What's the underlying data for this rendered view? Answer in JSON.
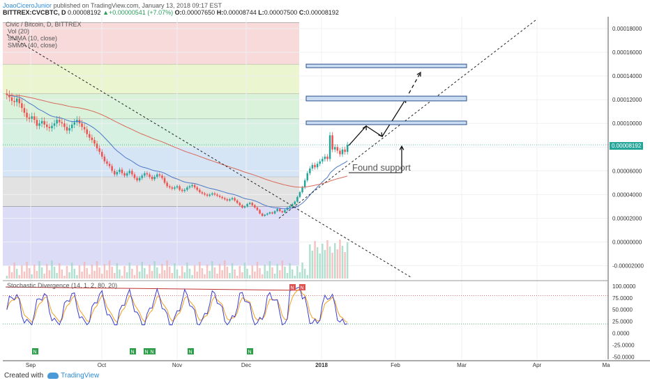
{
  "header": {
    "author": "JoaoCiceroJunior",
    "published_text": "published on TradingView.com, January 13, 2018 09:17 EST",
    "symbol": "BITTREX:CVCBTC, D",
    "price": "0.00008192",
    "change": "+0.00000541 (+7.07%)",
    "o_label": "O:",
    "o_value": "0.00007650",
    "h_label": "H:",
    "h_value": "0.00008744",
    "l_label": "L:",
    "l_value": "0.00007500",
    "c_label": "C:",
    "c_value": "0.00008192"
  },
  "legend": {
    "title": "Civic / Bitcoin, D, BITTREX",
    "vol": "Vol (20)",
    "smma10": "SMMA (10, close)",
    "smma40": "SMMA (40, close)"
  },
  "annotation": "Found support",
  "current_price_label": "0.00008192",
  "indicator_title": "Stochastic Divergence (14, 1, 2, 80, 20)",
  "footer": {
    "created_with": "Created with",
    "brand": "TradingView"
  },
  "colors": {
    "up": "#26a69a",
    "down": "#ef5350",
    "smma10": "#4a78c8",
    "smma40": "#d9695a",
    "stoch_k": "#3b3bd1",
    "stoch_d": "#f0a020",
    "signal": "#e05050",
    "buy_signal": "#2e9e4a"
  },
  "chart_data": [
    {
      "type": "candlestick",
      "x_ticks": [
        "Sep",
        "Oct",
        "Nov",
        "Dec",
        "2018",
        "Feb",
        "Mar",
        "Apr",
        "Ma"
      ],
      "y_ticks": [
        0.00018,
        0.00016,
        0.00014,
        0.00012,
        0.0001,
        8e-05,
        6e-05,
        4e-05,
        2e-05,
        0.0,
        -2e-05
      ],
      "y_tick_labels": [
        "0.00018000",
        "0.00016000",
        "0.00014000",
        "0.00012000",
        "0.00010000",
        "0.00008000",
        "0.00006000",
        "0.00004000",
        "0.00002000",
        "0.00000000",
        "-0.00002000"
      ],
      "ylim": [
        -3.2e-05,
        0.00019
      ],
      "fib_zones": [
        {
          "from": 5.5e-05,
          "to": 3e-05,
          "color": "#dddddd"
        },
        {
          "from": 8e-05,
          "to": 5.5e-05,
          "color": "#cfe0f4"
        },
        {
          "from": 0.000104,
          "to": 8e-05,
          "color": "#cfeedd"
        },
        {
          "from": 0.000125,
          "to": 0.000104,
          "color": "#d4f0d4"
        },
        {
          "from": 0.00015,
          "to": 0.000125,
          "color": "#e8f4c8"
        },
        {
          "from": 0.000185,
          "to": 0.00015,
          "color": "#f7d4d4"
        },
        {
          "from": 3e-05,
          "to": -2e-05,
          "color": "#d6d6f6"
        }
      ],
      "target_boxes": [
        {
          "low": 9.9e-05,
          "high": 0.000102
        },
        {
          "low": 0.000119,
          "high": 0.000123
        },
        {
          "low": 0.000147,
          "high": 0.00015
        }
      ],
      "last_price": 8.192e-05,
      "series": [
        {
          "name": "CVCBTC",
          "close": [
            0.000124,
            0.000122,
            0.000119,
            0.000118,
            0.000121,
            0.000117,
            0.000113,
            0.000109,
            0.000105,
            0.000104,
            0.000106,
            0.000103,
            9.8e-05,
            0.0001,
            0.000102,
            9.9e-05,
            9.7e-05,
            9.6e-05,
            9.8e-05,
            0.0001,
            0.000103,
            0.000101,
            0.0001,
            9.7e-05,
            9.4e-05,
            9.6e-05,
            9.9e-05,
            0.000101,
            0.000103,
            0.0001,
            9.7e-05,
            9.5e-05,
            9.1e-05,
            8.8e-05,
            8.6e-05,
            8.3e-05,
            7.9e-05,
            7.6e-05,
            7.2e-05,
            6.8e-05,
            6.6e-05,
            6.4e-05,
            6e-05,
            5.7e-05,
            5.9e-05,
            6.1e-05,
            5.8e-05,
            5.6e-05,
            5.8e-05,
            6e-05,
            5.7e-05,
            5.4e-05,
            5.2e-05,
            5.4e-05,
            5.6e-05,
            5.8e-05,
            5.7e-05,
            5.5e-05,
            5.3e-05,
            5.5e-05,
            5.7e-05,
            5.6e-05,
            5.4e-05,
            5e-05,
            4.7e-05,
            4.6e-05,
            4.5e-05,
            4.6e-05,
            4.7e-05,
            4.4e-05,
            4.3e-05,
            4.4e-05,
            4.6e-05,
            4.7e-05,
            4.8e-05,
            4.6e-05,
            4.4e-05,
            4.2e-05,
            4.1e-05,
            4e-05,
            3.9e-05,
            4e-05,
            4.1e-05,
            4e-05,
            3.9e-05,
            3.8e-05,
            3.7e-05,
            3.6e-05,
            3.5e-05,
            3.6e-05,
            3.7e-05,
            3.5e-05,
            3.3e-05,
            3.1e-05,
            2.9e-05,
            3e-05,
            3.2e-05,
            3.3e-05,
            3.1e-05,
            2.9e-05,
            2.7e-05,
            2.4e-05,
            2.2e-05,
            2.3e-05,
            2.4e-05,
            2.5e-05,
            2.4e-05,
            2.6e-05,
            2.8e-05,
            2.6e-05,
            2.5e-05,
            2.7e-05,
            2.9e-05,
            3e-05,
            3.2e-05,
            3.4e-05,
            3.8e-05,
            4.2e-05,
            4.6e-05,
            5.2e-05,
            5.8e-05,
            6.2e-05,
            6.5e-05,
            6.3e-05,
            6.6e-05,
            6.8e-05,
            7e-05,
            7.2e-05,
            7e-05,
            9e-05,
            7.8e-05,
            8e-05,
            7.7e-05,
            7.4e-05,
            7.8e-05,
            7.6e-05,
            8.2e-05
          ]
        },
        {
          "name": "Vol",
          "values": "volume bars"
        }
      ]
    },
    {
      "type": "line",
      "title": "Stochastic Divergence (14, 1, 2, 80, 20)",
      "y_ticks": [
        100,
        75,
        50,
        25,
        0,
        -25,
        -50
      ],
      "y_tick_labels": [
        "100.0000",
        "75.0000",
        "50.0000",
        "25.0000",
        "0.0000",
        "-25.0000",
        "-50.0000"
      ],
      "ylim": [
        -55,
        110
      ],
      "levels": [
        80,
        20
      ],
      "buy_signal_label": "N",
      "sell_signal_label": "N"
    }
  ]
}
